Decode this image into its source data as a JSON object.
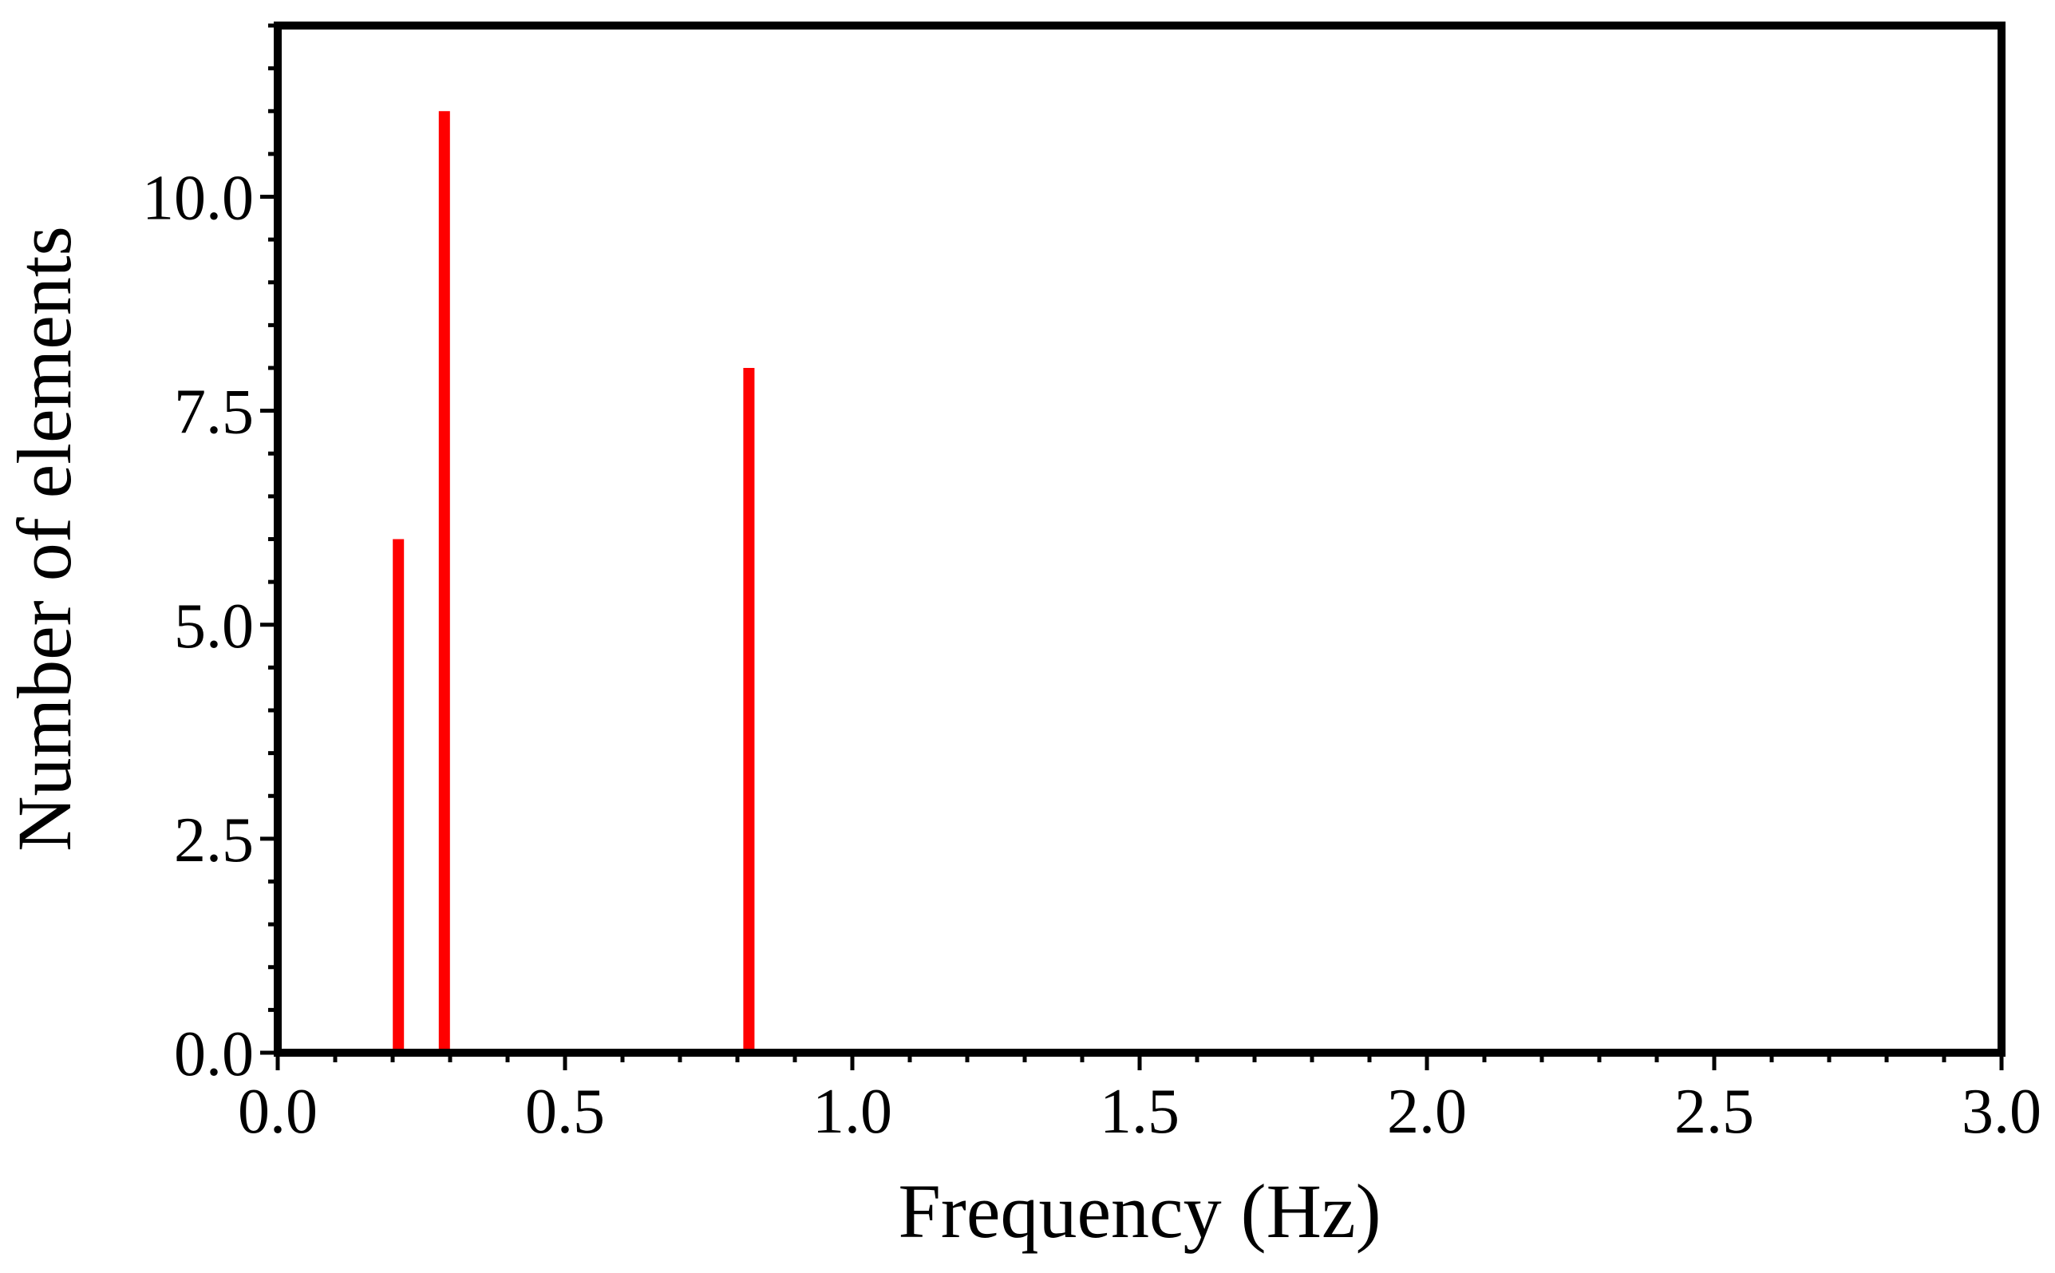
{
  "chart_data": {
    "type": "bar",
    "xlabel": "Frequency (Hz)",
    "ylabel": "Number of elements",
    "xlim": [
      0.0,
      3.0
    ],
    "ylim": [
      0.0,
      12.0
    ],
    "x_ticks": [
      "0.0",
      "0.5",
      "1.0",
      "1.5",
      "2.0",
      "2.5",
      "3.0"
    ],
    "y_ticks": [
      "0.0",
      "2.5",
      "5.0",
      "7.5",
      "10.0"
    ],
    "x_minor_step": 0.1,
    "y_minor_step": 0.5,
    "grid": false,
    "legend": "none",
    "bar_color": "#ff0000",
    "bars": [
      {
        "x": 0.21,
        "value": 6
      },
      {
        "x": 0.29,
        "value": 11
      },
      {
        "x": 0.82,
        "value": 8
      }
    ]
  }
}
